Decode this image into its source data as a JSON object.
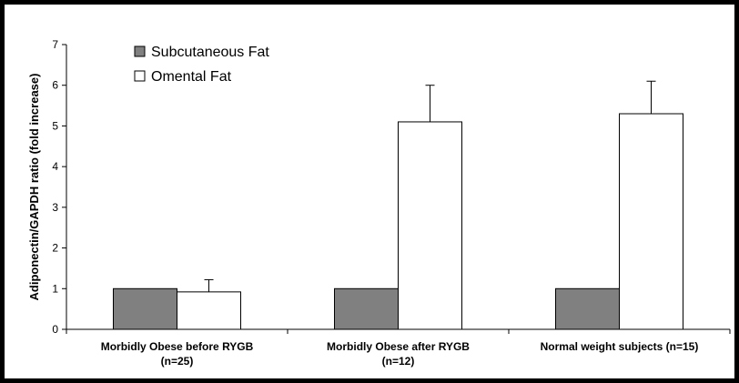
{
  "chart_data": {
    "type": "bar",
    "categories": [
      [
        "Morbidly Obese before RYGB",
        "(n=25)"
      ],
      [
        "Morbidly Obese after RYGB",
        "(n=12)"
      ],
      [
        "Normal weight subjects (n=15)"
      ]
    ],
    "series": [
      {
        "name": "Subcutaneous Fat",
        "color": "#808080",
        "values": [
          1.0,
          1.0,
          1.0
        ],
        "errors": [
          0,
          0,
          0
        ]
      },
      {
        "name": "Omental Fat",
        "color": "#ffffff",
        "values": [
          0.92,
          5.1,
          5.3
        ],
        "errors": [
          0.3,
          0.9,
          0.8
        ]
      }
    ],
    "title": "",
    "xlabel": "",
    "ylabel": "Adiponectin/GAPDH ratio (fold increase)",
    "ylim": [
      0,
      7
    ],
    "yticks": [
      0,
      1,
      2,
      3,
      4,
      5,
      6,
      7
    ],
    "grid": false,
    "legend_position": "top-left"
  }
}
